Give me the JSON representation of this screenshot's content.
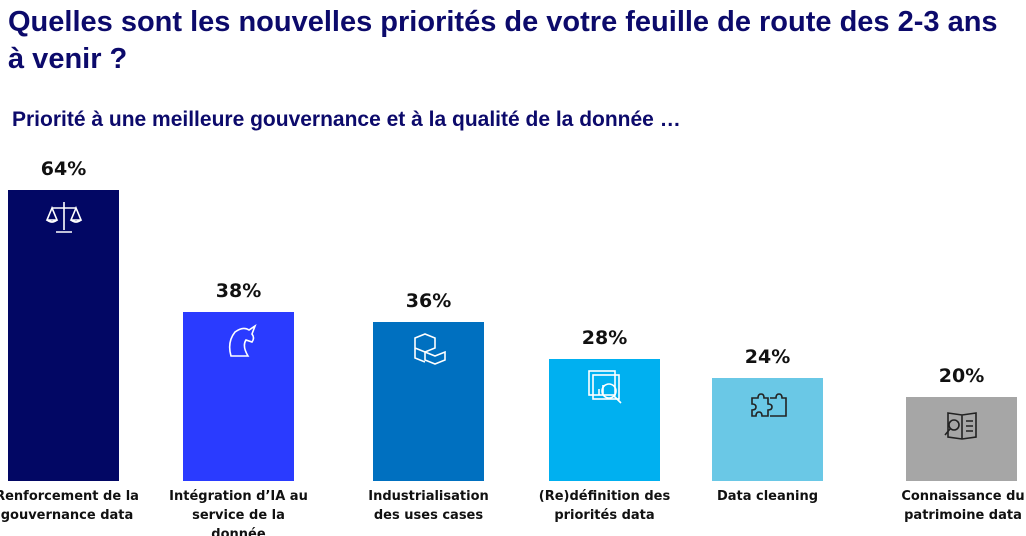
{
  "title": "Quelles sont les nouvelles priorités de votre feuille de route des 2-3 ans à venir ?",
  "subtitle": "Priorité à une meilleure gouvernance et à la qualité de la donnée …",
  "chart_data": {
    "type": "bar",
    "categories": [
      "Renforcement de la gouvernance data",
      "Intégration d’IA au service de la donnée",
      "Industrialisation des uses cases",
      "(Re)définition des priorités data",
      "Data cleaning",
      "Connaissance du patrimoine data"
    ],
    "values": [
      64,
      38,
      36,
      28,
      24,
      20
    ],
    "value_labels": [
      "64%",
      "38%",
      "36%",
      "28%",
      "24%",
      "20%"
    ],
    "colors": [
      "#020764",
      "#2a3bff",
      "#0070c0",
      "#00b0f0",
      "#6ac8e6",
      "#a6a6a6"
    ],
    "icons": [
      "scales-icon",
      "unicorn-icon",
      "building-blocks-icon",
      "data-analysis-icon",
      "puzzle-icon",
      "document-search-icon"
    ],
    "grid": false,
    "legend": "none"
  }
}
